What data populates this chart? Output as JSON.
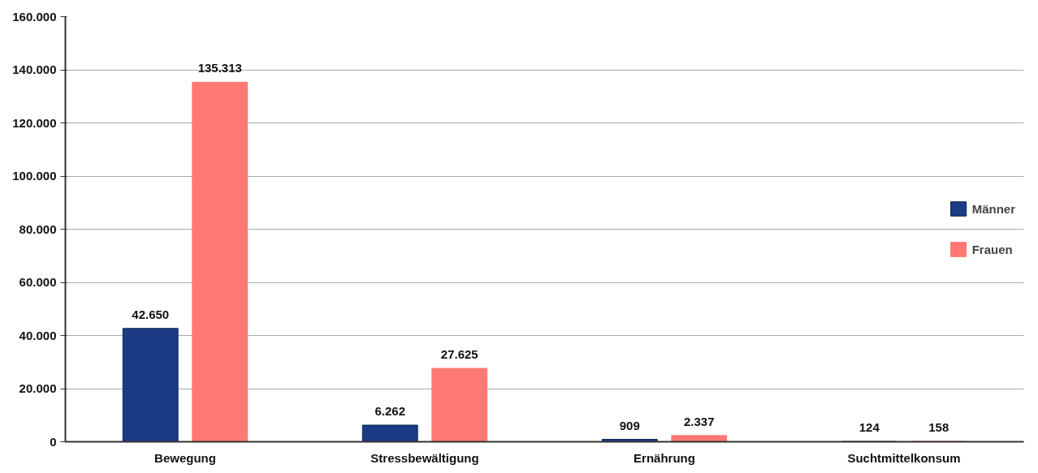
{
  "chart_data": {
    "type": "bar",
    "categories": [
      "Bewegung",
      "Stressbewältigung",
      "Ernährung",
      "Suchtmittelkonsum"
    ],
    "series": [
      {
        "name": "Männer",
        "color": "#1b3b85",
        "values": [
          42650,
          6262,
          909,
          124
        ],
        "value_labels": [
          "42.650",
          "6.262",
          "909",
          "124"
        ]
      },
      {
        "name": "Frauen",
        "color": "#ff7874",
        "values": [
          135313,
          27625,
          2337,
          158
        ],
        "value_labels": [
          "135.313",
          "27.625",
          "2.337",
          "158"
        ]
      }
    ],
    "ylim": [
      0,
      160000
    ],
    "yticks": [
      {
        "value": 0,
        "label": "0"
      },
      {
        "value": 20000,
        "label": "20.000"
      },
      {
        "value": 40000,
        "label": "40.000"
      },
      {
        "value": 60000,
        "label": "60.000"
      },
      {
        "value": 80000,
        "label": "80.000"
      },
      {
        "value": 100000,
        "label": "100.000"
      },
      {
        "value": 120000,
        "label": "120.000"
      },
      {
        "value": 140000,
        "label": "140.000"
      },
      {
        "value": 160000,
        "label": "160.000"
      }
    ],
    "grid": "y",
    "legend": "right"
  }
}
